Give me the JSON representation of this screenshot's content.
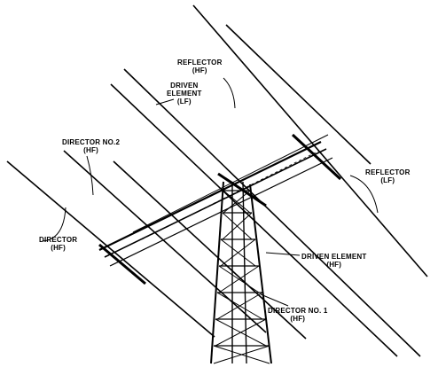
{
  "colors": {
    "ink": "#000000",
    "paper": "#ffffff"
  },
  "labels": {
    "reflector_hf": {
      "line1": "REFLECTOR",
      "line2": "(HF)"
    },
    "driven_lf": {
      "line1": "DRIVEN",
      "line2": "ELEMENT",
      "line3": "(LF)"
    },
    "director2_hf": {
      "line1": "DIRECTOR NO.2",
      "line2": "(HF)"
    },
    "reflector_lf": {
      "line1": "REFLECTOR",
      "line2": "(LF)"
    },
    "director_hf": {
      "line1": "DIRECTOR",
      "line2": "(HF)"
    },
    "driven_element": {
      "line1": "DRIVEN ELEMENT",
      "line2": "(HF)"
    },
    "director1_hf": {
      "line1": "DIRECTOR NO. 1",
      "line2": "(HF)"
    }
  }
}
